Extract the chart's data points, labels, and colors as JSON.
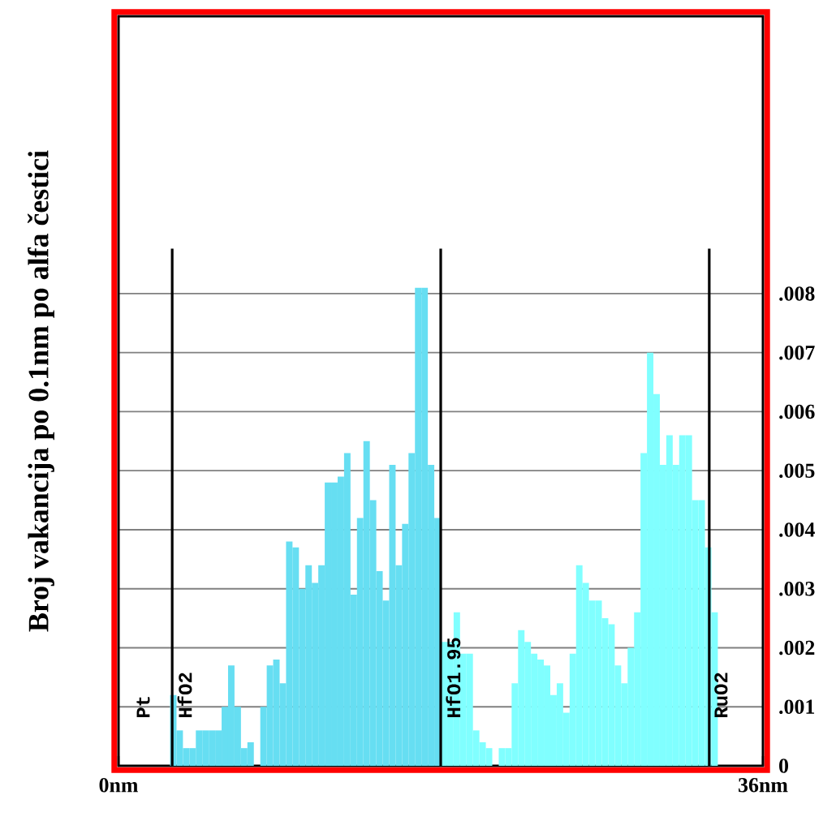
{
  "chart_data": {
    "type": "histogram",
    "ylabel": "Broj vakancija po 0.1nm po alfa čestici",
    "bins": [
      2.88,
      3.24,
      3.6,
      3.96,
      4.32,
      4.68,
      5.04,
      5.4,
      5.76,
      6.12,
      6.48,
      6.84,
      7.2,
      7.56,
      7.92,
      8.28,
      8.64,
      9,
      9.36,
      9.72,
      10.08,
      10.44,
      10.8,
      11.16,
      11.52,
      11.88,
      12.24,
      12.6,
      12.96,
      13.32,
      13.68,
      14.04,
      14.4,
      14.76,
      15.12,
      15.48,
      15.84,
      16.2,
      16.56,
      16.92,
      17.28,
      17.64,
      18,
      18.36,
      18.72,
      19.08,
      19.44,
      19.8,
      20.16,
      20.52,
      20.88,
      21.24,
      21.6,
      21.96,
      22.32,
      22.68,
      23.04,
      23.4,
      23.76,
      24.12,
      24.48,
      24.84,
      25.2,
      25.56,
      25.92,
      26.28,
      26.64,
      27,
      27.36,
      27.72,
      28.08,
      28.44,
      28.8,
      29.16,
      29.52,
      29.88,
      30.24,
      30.6,
      30.96,
      31.32,
      31.68,
      32.04,
      32.4,
      32.76,
      33.12,
      33.48
    ],
    "values": [
      0.0012,
      0.0006,
      0.0003,
      0.0003,
      0.0006,
      0.0006,
      0.0006,
      0.0006,
      0.001,
      0.0017,
      0.001,
      0.0003,
      0.0004,
      0,
      0.001,
      0.0017,
      0.0018,
      0.0014,
      0.0038,
      0.0037,
      0.003,
      0.0034,
      0.0031,
      0.0034,
      0.0048,
      0.0048,
      0.0049,
      0.0053,
      0.0029,
      0.0042,
      0.0055,
      0.0045,
      0.0033,
      0.0028,
      0.0051,
      0.0034,
      0.0041,
      0.0053,
      0.0081,
      0.0081,
      0.0051,
      0.0042,
      0.0021,
      0.0021,
      0.0026,
      0.0019,
      0.0019,
      0.0006,
      0.0004,
      0.0003,
      0,
      0.0003,
      0.0003,
      0.0014,
      0.0023,
      0.0021,
      0.0019,
      0.0018,
      0.0017,
      0.0012,
      0.0014,
      0.0009,
      0.0019,
      0.0034,
      0.0031,
      0.0028,
      0.0028,
      0.0025,
      0.0024,
      0.0017,
      0.0014,
      0.002,
      0.0026,
      0.0053,
      0.007,
      0.0063,
      0.0051,
      0.0056,
      0.0051,
      0.0056,
      0.0056,
      0.0045,
      0.0045,
      0.0037,
      0.0026
    ],
    "colors": [
      "#66def2",
      "#66def2",
      "#66def2",
      "#66def2",
      "#66def2",
      "#66def2",
      "#66def2",
      "#66def2",
      "#66def2",
      "#66def2",
      "#66def2",
      "#66def2",
      "#66def2",
      "#66def2",
      "#66def2",
      "#66def2",
      "#66def2",
      "#66def2",
      "#66def2",
      "#66def2",
      "#66def2",
      "#66def2",
      "#66def2",
      "#66def2",
      "#66def2",
      "#66def2",
      "#66def2",
      "#66def2",
      "#66def2",
      "#66def2",
      "#66def2",
      "#66def2",
      "#66def2",
      "#66def2",
      "#66def2",
      "#66def2",
      "#66def2",
      "#66def2",
      "#66def2",
      "#66def2",
      "#66def2",
      "#66def2",
      "#80ffff",
      "#80ffff",
      "#80ffff",
      "#80ffff",
      "#80ffff",
      "#80ffff",
      "#80ffff",
      "#80ffff",
      "#80ffff",
      "#80ffff",
      "#80ffff",
      "#80ffff",
      "#80ffff",
      "#80ffff",
      "#80ffff",
      "#80ffff",
      "#80ffff",
      "#80ffff",
      "#80ffff",
      "#80ffff",
      "#80ffff",
      "#80ffff",
      "#80ffff",
      "#80ffff",
      "#80ffff",
      "#80ffff",
      "#80ffff",
      "#80ffff",
      "#80ffff",
      "#80ffff",
      "#80ffff",
      "#80ffff",
      "#80ffff",
      "#80ffff",
      "#80ffff",
      "#80ffff",
      "#80ffff",
      "#80ffff",
      "#80ffff",
      "#80ffff",
      "#80ffff",
      "#80ffff",
      "#80ffff"
    ],
    "xlim": [
      0,
      36
    ],
    "xticks": [
      {
        "value": 0,
        "label": "0nm"
      },
      {
        "value": 10,
        "label": null
      },
      {
        "value": 20,
        "label": null
      },
      {
        "value": 30,
        "label": null
      },
      {
        "value": 36,
        "label": "36nm"
      }
    ],
    "ylim": [
      0,
      0.0127
    ],
    "yticks": [
      0,
      {
        "value": 0.001,
        "label": ".001"
      },
      {
        "value": 0.002,
        "label": ".002"
      },
      {
        "value": 0.003,
        "label": ".003"
      },
      {
        "value": 0.004,
        "label": ".004"
      },
      {
        "value": 0.005,
        "label": ".005"
      },
      {
        "value": 0.006,
        "label": ".006"
      },
      {
        "value": 0.007,
        "label": ".007"
      },
      {
        "value": 0.008,
        "label": ".008"
      }
    ],
    "grid": "y",
    "ref_lines": [
      {
        "axis": "x",
        "value": 3,
        "label": "HfO2"
      },
      {
        "axis": "x",
        "value": 18,
        "label": "HfO1.95"
      },
      {
        "axis": "x",
        "value": 33,
        "label": "RuO2"
      }
    ],
    "annotations": [
      "Pt"
    ]
  }
}
